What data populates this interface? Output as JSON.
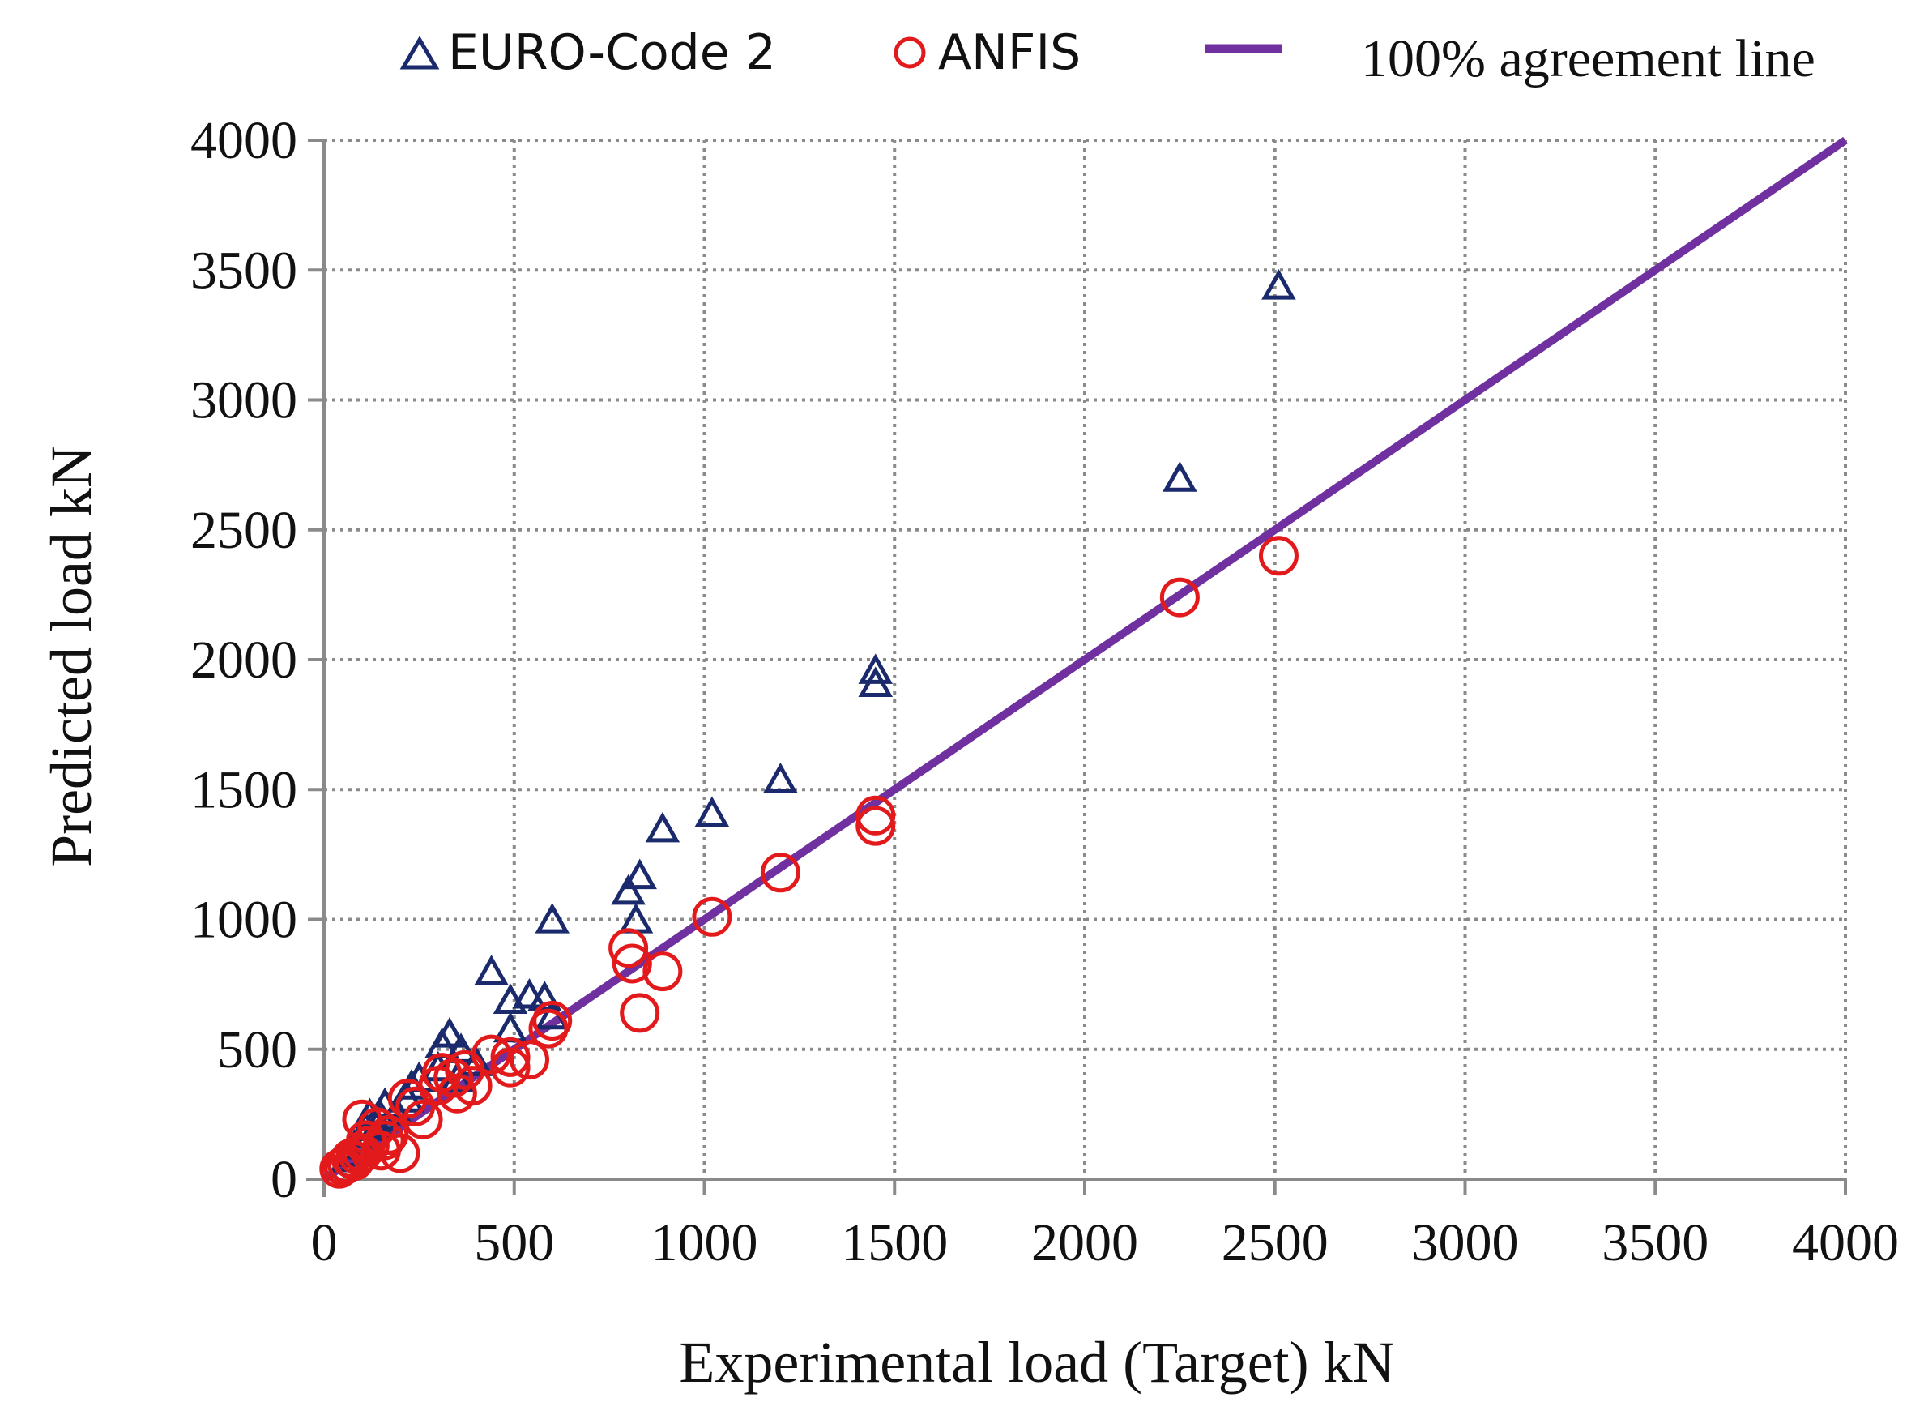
{
  "chart_data": {
    "type": "scatter",
    "xlabel": "Experimental load (Target) kN",
    "ylabel": "Predicted load  kN",
    "xlim": [
      0,
      4000
    ],
    "ylim": [
      0,
      4000
    ],
    "xticks": [
      "0",
      "500",
      "1000",
      "1500",
      "2000",
      "2500",
      "3000",
      "3500",
      "4000"
    ],
    "yticks": [
      "0",
      "500",
      "1000",
      "1500",
      "2000",
      "2500",
      "3000",
      "3500",
      "4000"
    ],
    "grid": true,
    "legend_position": "top",
    "series": [
      {
        "name": "EURO-Code 2",
        "marker": "triangle",
        "color": "#1a2a6c",
        "points": [
          [
            2510,
            3430
          ],
          [
            2250,
            2690
          ],
          [
            1450,
            1950
          ],
          [
            1450,
            1900
          ],
          [
            1200,
            1530
          ],
          [
            1020,
            1400
          ],
          [
            890,
            1340
          ],
          [
            830,
            1160
          ],
          [
            800,
            1100
          ],
          [
            820,
            990
          ],
          [
            600,
            990
          ],
          [
            440,
            790
          ],
          [
            490,
            680
          ],
          [
            540,
            700
          ],
          [
            580,
            690
          ],
          [
            490,
            570
          ],
          [
            600,
            620
          ],
          [
            330,
            550
          ],
          [
            310,
            510
          ],
          [
            360,
            490
          ],
          [
            300,
            420
          ],
          [
            250,
            380
          ],
          [
            230,
            350
          ],
          [
            220,
            300
          ],
          [
            160,
            280
          ],
          [
            150,
            230
          ],
          [
            120,
            240
          ],
          [
            110,
            190
          ],
          [
            100,
            160
          ],
          [
            80,
            120
          ],
          [
            70,
            90
          ],
          [
            60,
            70
          ],
          [
            400,
            440
          ],
          [
            350,
            380
          ],
          [
            190,
            250
          ],
          [
            140,
            200
          ]
        ]
      },
      {
        "name": "ANFIS",
        "marker": "circle",
        "color": "#e31a1c",
        "points": [
          [
            2510,
            2400
          ],
          [
            2250,
            2240
          ],
          [
            1450,
            1400
          ],
          [
            1450,
            1360
          ],
          [
            1200,
            1180
          ],
          [
            1020,
            1010
          ],
          [
            890,
            800
          ],
          [
            830,
            640
          ],
          [
            800,
            890
          ],
          [
            810,
            830
          ],
          [
            600,
            610
          ],
          [
            590,
            580
          ],
          [
            540,
            460
          ],
          [
            490,
            430
          ],
          [
            490,
            470
          ],
          [
            440,
            480
          ],
          [
            390,
            360
          ],
          [
            370,
            420
          ],
          [
            350,
            330
          ],
          [
            340,
            390
          ],
          [
            310,
            410
          ],
          [
            300,
            360
          ],
          [
            260,
            230
          ],
          [
            240,
            280
          ],
          [
            220,
            310
          ],
          [
            200,
            100
          ],
          [
            170,
            170
          ],
          [
            160,
            150
          ],
          [
            140,
            200
          ],
          [
            120,
            130
          ],
          [
            100,
            230
          ],
          [
            100,
            100
          ],
          [
            90,
            90
          ],
          [
            80,
            70
          ],
          [
            70,
            80
          ],
          [
            60,
            60
          ],
          [
            50,
            50
          ],
          [
            40,
            40
          ],
          [
            150,
            110
          ],
          [
            110,
            150
          ]
        ]
      },
      {
        "name": "100% agreement line",
        "type": "line",
        "color": "#7030a0",
        "x": [
          0,
          4000
        ],
        "y": [
          0,
          4000
        ]
      }
    ]
  }
}
